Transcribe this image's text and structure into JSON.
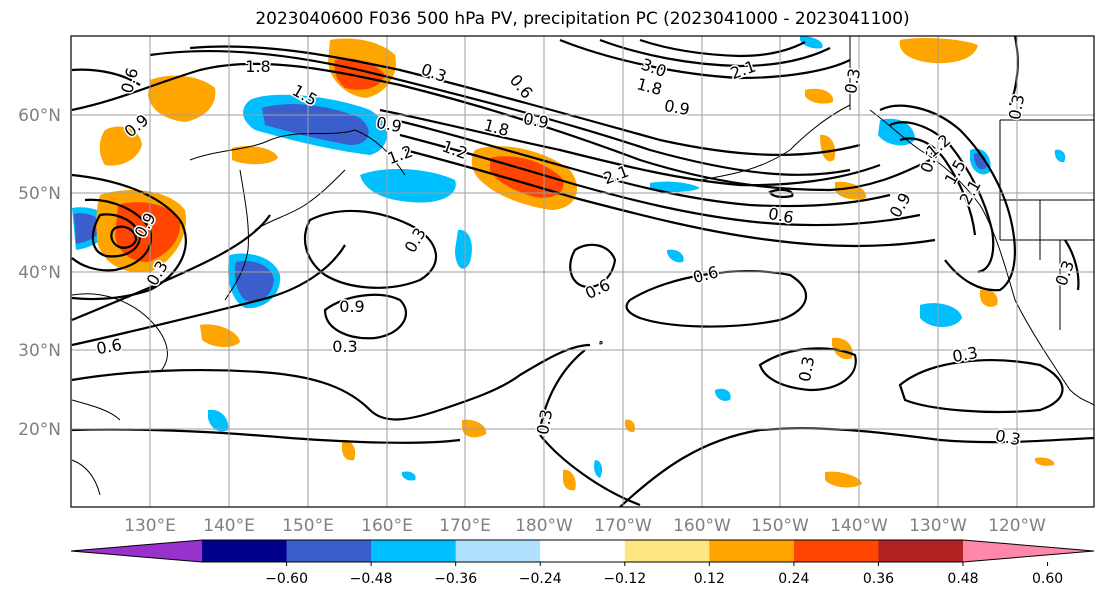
{
  "title": "2023040600 F036 500 hPa PV, precipitation PC (2023041000 - 2023041100)",
  "lat_labels": [
    "60°N",
    "50°N",
    "40°N",
    "30°N",
    "20°N"
  ],
  "lon_labels": [
    "130°E",
    "140°E",
    "150°E",
    "160°E",
    "170°E",
    "180°W",
    "170°W",
    "160°W",
    "150°W",
    "140°W",
    "130°W",
    "120°W"
  ],
  "colorbar": {
    "ticks": [
      "−0.60",
      "−0.48",
      "−0.36",
      "−0.24",
      "−0.12",
      "0.12",
      "0.24",
      "0.36",
      "0.48",
      "0.60"
    ],
    "colors": [
      "#9932cc",
      "#00008b",
      "#3a5fcd",
      "#00bfff",
      "#b0e2ff",
      "#ffffff",
      "#ffe680",
      "#ffa500",
      "#ff4500",
      "#b22222",
      "#ff88aa"
    ]
  },
  "contour_labels": [
    "1.8",
    "1.5",
    "0.3",
    "0.6",
    "0.9",
    "1.8",
    "0.9",
    "1.2",
    "2.1",
    "1.8",
    "0.9",
    "3.0",
    "2.1",
    "0.6",
    "0.9",
    "0.3",
    "0.6",
    "0.6",
    "0.9",
    "0.3",
    "0.9",
    "0.3",
    "0.6",
    "0.3",
    "0.6",
    "0.3",
    "0.3",
    "0.3",
    "0.3",
    "0.3",
    "0.3",
    "1.2",
    "1.5",
    "2.1",
    "0.9",
    "1.2",
    "0.3"
  ]
}
